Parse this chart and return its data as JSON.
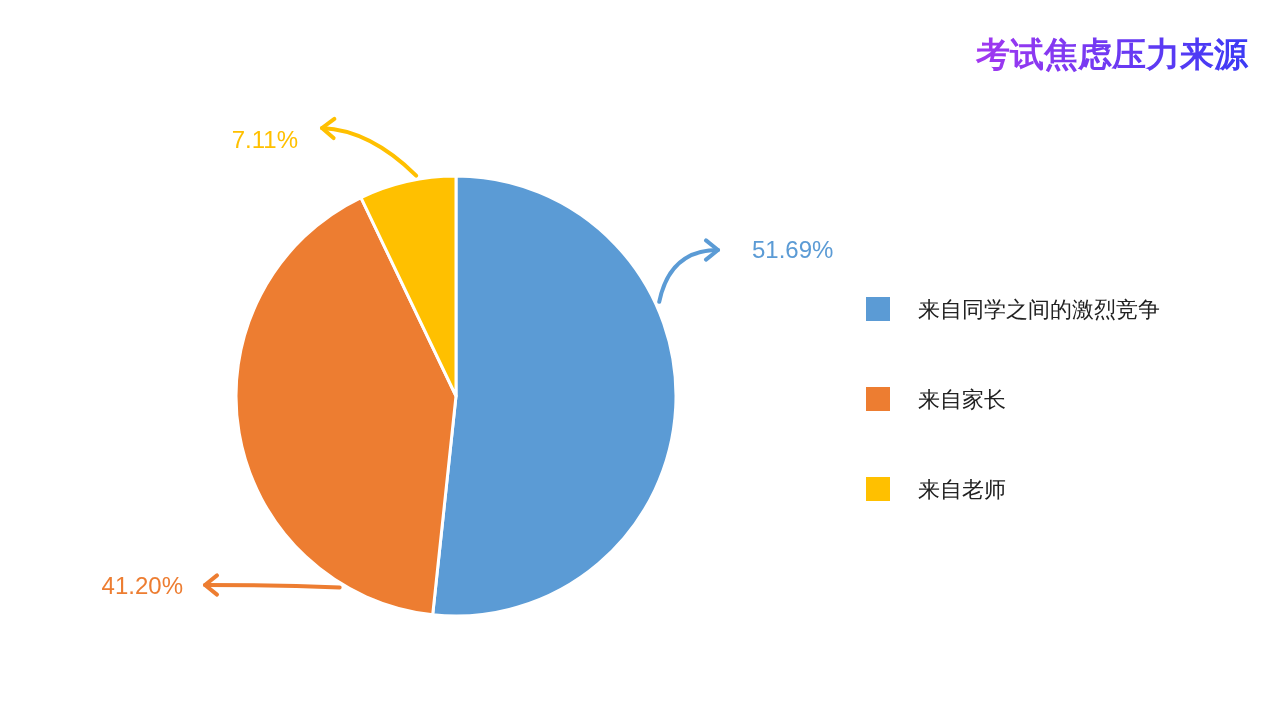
{
  "chart_data": {
    "type": "pie",
    "title": "考试焦虑压力来源",
    "categories": [
      "来自同学之间的激烈竞争",
      "来自家长",
      "来自老师"
    ],
    "values": [
      51.69,
      41.2,
      7.11
    ],
    "colors": [
      "#5b9bd5",
      "#ed7d31",
      "#ffc000"
    ],
    "value_labels": [
      "51.69%",
      "41.20%",
      "7.11%"
    ],
    "legend": "right"
  }
}
